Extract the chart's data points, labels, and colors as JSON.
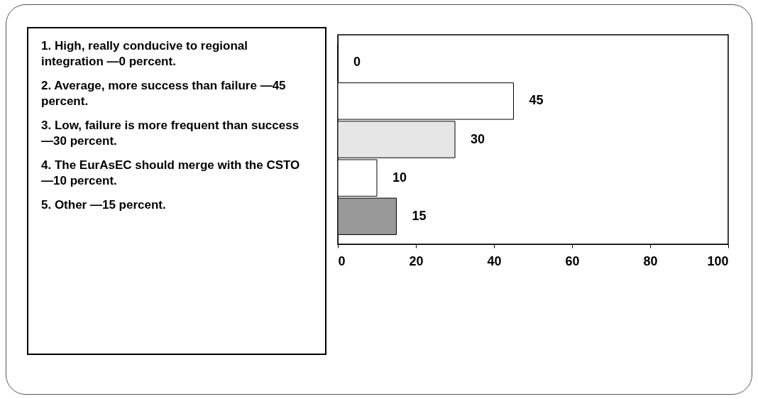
{
  "chart_data": {
    "type": "bar",
    "orientation": "horizontal",
    "categories": [
      null,
      null,
      null,
      null,
      null
    ],
    "values": [
      0,
      45,
      30,
      10,
      15
    ],
    "colors": [
      "#1a1a1a",
      "#ffffff",
      "#e6e6e6",
      "#ffffff",
      "#999999"
    ],
    "xlim": [
      0,
      100
    ],
    "xticks": [
      0,
      20,
      40,
      60,
      80,
      100
    ],
    "data_labels": true,
    "annotations": [
      "1. High, really conducive to regional integration —0 percent.",
      "2. Average, more success than failure —45 percent.",
      "3. Low, failure is more frequent than success —30 percent.",
      "4. The EurAsEC should merge with the CSTO —10 percent.",
      "5. Other —15 percent."
    ]
  }
}
